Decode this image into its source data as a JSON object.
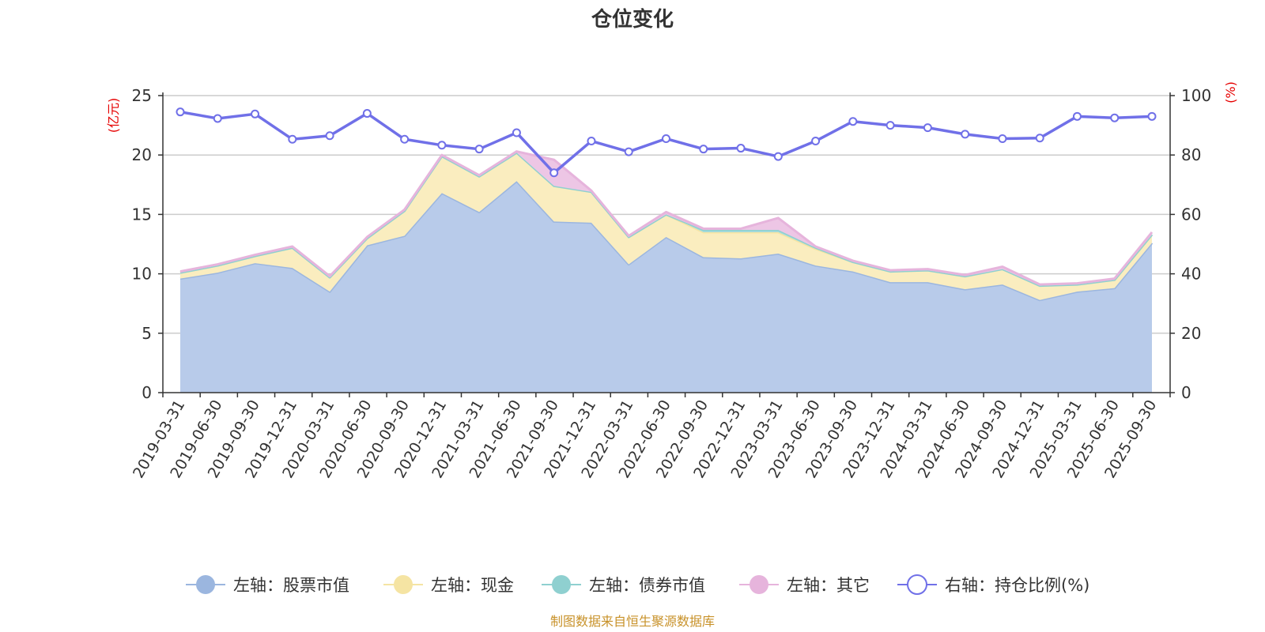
{
  "chart_data": {
    "type": "area",
    "title": "仓位变化",
    "left_axis_unit": "(亿元)",
    "right_axis_unit": "(%)",
    "left_ylim": [
      0,
      25
    ],
    "left_ticks": [
      0,
      5,
      10,
      15,
      20,
      25
    ],
    "right_ylim": [
      0,
      100
    ],
    "right_ticks": [
      0,
      20,
      40,
      60,
      80,
      100
    ],
    "grid": true,
    "legend_position": "bottom",
    "categories": [
      "2019-03-31",
      "2019-06-30",
      "2019-09-30",
      "2019-12-31",
      "2020-03-31",
      "2020-06-30",
      "2020-09-30",
      "2020-12-31",
      "2021-03-31",
      "2021-06-30",
      "2021-09-30",
      "2021-12-31",
      "2022-03-31",
      "2022-06-30",
      "2022-09-30",
      "2022-12-31",
      "2023-03-31",
      "2023-06-30",
      "2023-09-30",
      "2023-12-31",
      "2024-03-31",
      "2024-06-30",
      "2024-09-30",
      "2024-12-31",
      "2025-03-31",
      "2025-06-30",
      "2025-09-30"
    ],
    "series": [
      {
        "name": "左轴：股票市值",
        "axis": "left",
        "kind": "stacked-area",
        "color": "#9bb6df",
        "fill": "#b8cbea",
        "values": [
          9.6,
          10.1,
          10.9,
          10.5,
          8.5,
          12.4,
          13.2,
          16.8,
          15.2,
          17.8,
          14.4,
          14.3,
          10.8,
          13.1,
          11.4,
          11.3,
          11.7,
          10.7,
          10.2,
          9.3,
          9.3,
          8.7,
          9.1,
          7.8,
          8.5,
          8.8,
          12.6
        ]
      },
      {
        "name": "左轴：现金",
        "axis": "left",
        "kind": "stacked-area",
        "color": "#f5e4a3",
        "fill": "#faedbf",
        "values": [
          0.5,
          0.6,
          0.6,
          1.7,
          1.2,
          0.6,
          2.1,
          3.1,
          3.0,
          2.4,
          3.0,
          2.6,
          2.3,
          1.9,
          2.1,
          2.2,
          1.8,
          1.4,
          0.8,
          0.9,
          1.0,
          1.1,
          1.3,
          1.2,
          0.6,
          0.7,
          0.7
        ]
      },
      {
        "name": "左轴：债券市值",
        "axis": "left",
        "kind": "stacked-area",
        "color": "#8fd0d0",
        "fill": "#a7dcdc",
        "values": [
          0,
          0,
          0,
          0,
          0,
          0,
          0,
          0,
          0,
          0,
          0,
          0,
          0,
          0,
          0.2,
          0.2,
          0.2,
          0.1,
          0,
          0,
          0,
          0,
          0,
          0,
          0,
          0,
          0
        ]
      },
      {
        "name": "左轴：其它",
        "axis": "left",
        "kind": "stacked-area",
        "color": "#e6b4dc",
        "fill": "#edc6e5",
        "values": [
          0.1,
          0.1,
          0.1,
          0.1,
          0.1,
          0.1,
          0.1,
          0.1,
          0.1,
          0.1,
          2.2,
          0.1,
          0.1,
          0.2,
          0.1,
          0.1,
          1.0,
          0.1,
          0.1,
          0.1,
          0.1,
          0.1,
          0.2,
          0.1,
          0.1,
          0.1,
          0.2
        ]
      },
      {
        "name": "右轴：持仓比例(%)",
        "axis": "right",
        "kind": "line",
        "color": "#7070e8",
        "values": [
          94.5,
          92.3,
          93.8,
          85.3,
          86.5,
          94.0,
          85.3,
          83.3,
          82.0,
          87.5,
          74.0,
          84.7,
          81.1,
          85.5,
          82.0,
          82.3,
          79.5,
          84.7,
          91.3,
          90.0,
          89.2,
          87.0,
          85.5,
          85.7,
          93.0,
          92.5,
          93.0
        ]
      }
    ]
  },
  "footer": {
    "source": "制图数据来自恒生聚源数据库"
  }
}
